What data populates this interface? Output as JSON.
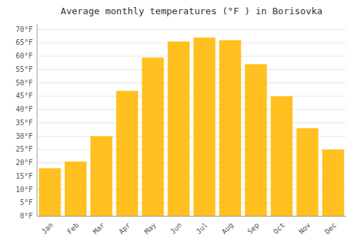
{
  "chart_data": {
    "type": "bar",
    "title": "Average monthly temperatures (°F ) in Borisovka",
    "categories": [
      "Jan",
      "Feb",
      "Mar",
      "Apr",
      "May",
      "Jun",
      "Jul",
      "Aug",
      "Sep",
      "Oct",
      "Nov",
      "Dec"
    ],
    "values": [
      18,
      20.5,
      30,
      47,
      59.5,
      65.5,
      67,
      66,
      57,
      45,
      33,
      25
    ],
    "color": "#FFC020",
    "ylim": [
      0,
      72
    ],
    "yticks": [
      {
        "value": 0,
        "label": "0°F"
      },
      {
        "value": 5,
        "label": "5°F"
      },
      {
        "value": 10,
        "label": "10°F"
      },
      {
        "value": 15,
        "label": "15°F"
      },
      {
        "value": 20,
        "label": "20°F"
      },
      {
        "value": 25,
        "label": "25°F"
      },
      {
        "value": 30,
        "label": "30°F"
      },
      {
        "value": 35,
        "label": "35°F"
      },
      {
        "value": 40,
        "label": "40°F"
      },
      {
        "value": 45,
        "label": "45°F"
      },
      {
        "value": 50,
        "label": "50°F"
      },
      {
        "value": 55,
        "label": "55°F"
      },
      {
        "value": 60,
        "label": "60°F"
      },
      {
        "value": 65,
        "label": "65°F"
      },
      {
        "value": 70,
        "label": "70°F"
      }
    ],
    "grid": true
  }
}
